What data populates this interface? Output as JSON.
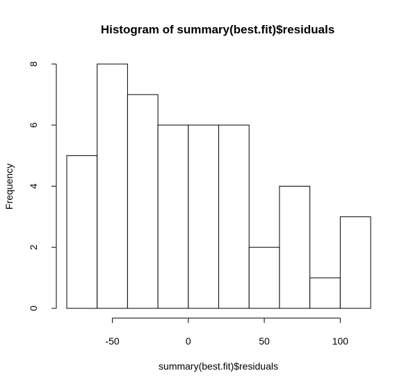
{
  "chart_data": {
    "type": "bar",
    "title": "Histogram of summary(best.fit)$residuals",
    "xlabel": "summary(best.fit)$residuals",
    "ylabel": "Frequency",
    "bin_edges": [
      -80,
      -60,
      -40,
      -20,
      0,
      20,
      40,
      60,
      80,
      100,
      120
    ],
    "values": [
      5,
      8,
      7,
      6,
      6,
      6,
      2,
      4,
      1,
      3
    ],
    "xlim": [
      -80,
      120
    ],
    "ylim": [
      0,
      8
    ],
    "x_ticks": [
      -50,
      0,
      50,
      100
    ],
    "x_tick_labels": [
      "-50",
      "0",
      "50",
      "100"
    ],
    "y_ticks": [
      0,
      2,
      4,
      6,
      8
    ],
    "y_tick_labels": [
      "0",
      "2",
      "4",
      "6",
      "8"
    ],
    "grid": false,
    "legend": "none",
    "bar_fill": "#ffffff",
    "bar_stroke": "#000000"
  }
}
